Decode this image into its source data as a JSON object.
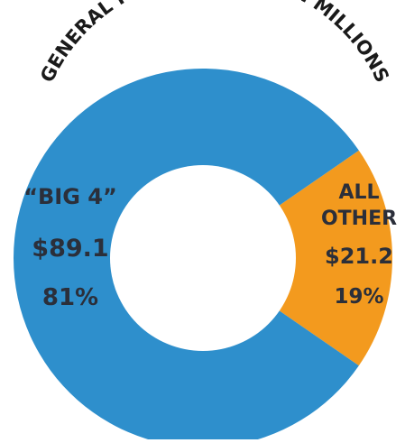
{
  "chart_data": {
    "type": "pie",
    "title": "GENERAL FUND SOURCES IN MILLIONS",
    "units": "millions",
    "donut": true,
    "slices": [
      {
        "label": "“BIG 4”",
        "value": 89.1,
        "value_text": "$89.1",
        "percent": 81,
        "percent_text": "81%",
        "color": "#2e8fcc"
      },
      {
        "label": "ALL OTHER",
        "value": 21.2,
        "value_text": "$21.2",
        "percent": 19,
        "percent_text": "19%",
        "color": "#f39a1e"
      }
    ]
  }
}
